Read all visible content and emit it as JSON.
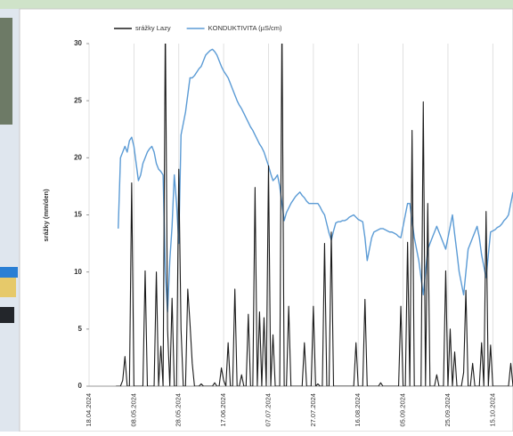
{
  "chart_data": {
    "type": "line",
    "x": [
      "18.04.2024",
      "19.04.2024",
      "20.04.2024",
      "21.04.2024",
      "22.04.2024",
      "23.04.2024",
      "24.04.2024",
      "25.04.2024",
      "26.04.2024",
      "27.04.2024",
      "28.04.2024",
      "29.04.2024",
      "30.04.2024",
      "01.05.2024",
      "02.05.2024",
      "03.05.2024",
      "04.05.2024",
      "05.05.2024",
      "06.05.2024",
      "07.05.2024",
      "08.05.2024",
      "09.05.2024",
      "10.05.2024",
      "11.05.2024",
      "12.05.2024",
      "13.05.2024",
      "14.05.2024",
      "15.05.2024",
      "16.05.2024",
      "17.05.2024",
      "18.05.2024",
      "19.05.2024",
      "20.05.2024",
      "21.05.2024",
      "22.05.2024",
      "23.05.2024",
      "24.05.2024",
      "25.05.2024",
      "26.05.2024",
      "27.05.2024",
      "28.05.2024",
      "29.05.2024",
      "30.05.2024",
      "31.05.2024",
      "01.06.2024",
      "02.06.2024",
      "03.06.2024",
      "04.06.2024",
      "05.06.2024",
      "06.06.2024",
      "07.06.2024",
      "08.06.2024",
      "09.06.2024",
      "10.06.2024",
      "11.06.2024",
      "12.06.2024",
      "13.06.2024",
      "14.06.2024",
      "15.06.2024",
      "16.06.2024",
      "17.06.2024",
      "18.06.2024",
      "19.06.2024",
      "20.06.2024",
      "21.06.2024",
      "22.06.2024",
      "23.06.2024",
      "24.06.2024",
      "25.06.2024",
      "26.06.2024",
      "27.06.2024",
      "28.06.2024",
      "29.06.2024",
      "30.06.2024",
      "01.07.2024",
      "02.07.2024",
      "03.07.2024",
      "04.07.2024",
      "05.07.2024",
      "06.07.2024",
      "07.07.2024",
      "08.07.2024",
      "09.07.2024",
      "10.07.2024",
      "11.07.2024",
      "12.07.2024",
      "13.07.2024",
      "14.07.2024",
      "15.07.2024",
      "16.07.2024",
      "17.07.2024",
      "18.07.2024",
      "19.07.2024",
      "20.07.2024",
      "21.07.2024",
      "22.07.2024",
      "23.07.2024",
      "24.07.2024",
      "25.07.2024",
      "26.07.2024",
      "27.07.2024",
      "28.07.2024",
      "29.07.2024",
      "30.07.2024",
      "31.07.2024",
      "01.08.2024",
      "02.08.2024",
      "03.08.2024",
      "04.08.2024",
      "05.08.2024",
      "06.08.2024",
      "07.08.2024",
      "08.08.2024",
      "09.08.2024",
      "10.08.2024",
      "11.08.2024",
      "12.08.2024",
      "13.08.2024",
      "14.08.2024",
      "15.08.2024",
      "16.08.2024",
      "17.08.2024",
      "18.08.2024",
      "19.08.2024",
      "20.08.2024",
      "21.08.2024",
      "22.08.2024",
      "23.08.2024",
      "24.08.2024",
      "25.08.2024",
      "26.08.2024",
      "27.08.2024",
      "28.08.2024",
      "29.08.2024",
      "30.08.2024",
      "31.08.2024",
      "01.09.2024",
      "02.09.2024",
      "03.09.2024",
      "04.09.2024",
      "05.09.2024",
      "06.09.2024",
      "07.09.2024",
      "08.09.2024",
      "09.09.2024",
      "10.09.2024",
      "11.09.2024",
      "12.09.2024",
      "13.09.2024",
      "14.09.2024",
      "15.09.2024",
      "16.09.2024",
      "17.09.2024",
      "18.09.2024",
      "19.09.2024",
      "20.09.2024",
      "21.09.2024",
      "22.09.2024",
      "23.09.2024",
      "24.09.2024",
      "25.09.2024",
      "26.09.2024",
      "27.09.2024",
      "28.09.2024",
      "29.09.2024",
      "30.09.2024",
      "01.10.2024",
      "02.10.2024",
      "03.10.2024",
      "04.10.2024",
      "05.10.2024",
      "06.10.2024",
      "07.10.2024",
      "08.10.2024",
      "09.10.2024",
      "10.10.2024",
      "11.10.2024",
      "12.10.2024",
      "13.10.2024",
      "14.10.2024",
      "15.10.2024",
      "16.10.2024",
      "17.10.2024",
      "18.10.2024",
      "19.10.2024",
      "20.10.2024",
      "21.10.2024",
      "22.10.2024",
      "23.10.2024",
      "24.10.2024"
    ],
    "series": [
      {
        "name": "srážky Lazy",
        "color": "#1a1a1a",
        "values": [
          null,
          null,
          null,
          null,
          null,
          null,
          null,
          null,
          null,
          null,
          null,
          null,
          0,
          0,
          0,
          0.5,
          2.6,
          0,
          0,
          17.8,
          0,
          0,
          0,
          0,
          0,
          10.1,
          0,
          0,
          0,
          0,
          10,
          0,
          3.5,
          0,
          32,
          5,
          0,
          7.7,
          0,
          0,
          19,
          5,
          0,
          0,
          8.5,
          5.5,
          2,
          0,
          0,
          0,
          0.2,
          0,
          0,
          0,
          0,
          0,
          0.3,
          0,
          0,
          1.6,
          0.5,
          0,
          3.8,
          0,
          0,
          8.5,
          0,
          0,
          1,
          0,
          0,
          6.3,
          0,
          0,
          17.4,
          0,
          6.5,
          0,
          6,
          0,
          19.3,
          0,
          4.5,
          0,
          0,
          0,
          32,
          0,
          0,
          7,
          0,
          0,
          0,
          0,
          0,
          0,
          3.8,
          0,
          0,
          0,
          7,
          0,
          0.2,
          0,
          0,
          12.5,
          0,
          0,
          13.5,
          0,
          0,
          0,
          0,
          0,
          0,
          0,
          0,
          0,
          0,
          3.8,
          0,
          0,
          0,
          7.6,
          0,
          0,
          0,
          0,
          0,
          0,
          0.3,
          0,
          0,
          0,
          0,
          0,
          0,
          0,
          0,
          7,
          0,
          0,
          12.6,
          0,
          22.4,
          0,
          0,
          0,
          0,
          24.9,
          0,
          16,
          0,
          0,
          0,
          1,
          0,
          0,
          0,
          10.1,
          0,
          5,
          0,
          3,
          0,
          0,
          0,
          1.2,
          8.4,
          0,
          0,
          2,
          0,
          0,
          0,
          3.8,
          0,
          15.3,
          0,
          3.6,
          0,
          0,
          0,
          0,
          0,
          0,
          0,
          0,
          2,
          0
        ]
      },
      {
        "name": "KONDUKTIVITA (µS/cm)",
        "color": "#5b9bd5",
        "values": [
          null,
          null,
          null,
          null,
          null,
          null,
          null,
          null,
          null,
          null,
          null,
          null,
          null,
          13.8,
          20,
          20.5,
          21,
          20.5,
          21.5,
          21.8,
          21,
          19.5,
          18,
          18.5,
          19.5,
          20,
          20.5,
          20.8,
          21,
          20.5,
          19.5,
          19,
          18.8,
          18.5,
          10,
          6.5,
          11,
          14,
          18.5,
          16,
          12.5,
          22,
          23,
          24,
          25.5,
          27,
          27,
          27.2,
          27.5,
          27.8,
          28,
          28.5,
          29,
          29.2,
          29.4,
          29.5,
          29.3,
          29,
          28.5,
          28,
          27.6,
          27.3,
          27,
          26.5,
          26,
          25.5,
          25,
          24.6,
          24.3,
          23.9,
          23.5,
          23.1,
          22.7,
          22.4,
          22,
          21.6,
          21.2,
          20.9,
          20.5,
          19.9,
          19.3,
          18.6,
          18,
          18.2,
          18.5,
          17.5,
          16,
          14.5,
          15.2,
          15.6,
          16,
          16.3,
          16.6,
          16.8,
          17,
          16.7,
          16.5,
          16.2,
          16,
          16,
          16,
          16,
          16,
          15.7,
          15.3,
          15,
          14.2,
          13.4,
          12.8,
          13.6,
          14.3,
          14.4,
          14.4,
          14.5,
          14.5,
          14.6,
          14.8,
          14.9,
          15,
          14.8,
          14.6,
          14.5,
          14.4,
          13,
          11,
          12,
          13,
          13.5,
          13.6,
          13.7,
          13.8,
          13.8,
          13.7,
          13.6,
          13.5,
          13.5,
          13.4,
          13.3,
          13.1,
          13,
          14,
          15,
          16,
          16,
          14.5,
          13,
          12,
          11,
          9.5,
          8,
          10,
          12,
          12.5,
          13,
          13.5,
          14,
          13.5,
          13,
          12.5,
          12,
          13,
          14,
          15,
          13.3,
          11.7,
          10,
          9,
          8,
          10,
          12,
          12.5,
          13,
          13.5,
          14,
          13,
          11.5,
          10.5,
          9.5,
          11.5,
          13.5,
          13.6,
          13.7,
          13.9,
          14,
          14.2,
          14.5,
          14.7,
          15,
          16,
          17
        ]
      }
    ],
    "y_label": "srážky (mm/den)",
    "xlim": [
      "18.04.2024",
      "24.10.2024"
    ],
    "xticks": [
      "18.04.2024",
      "08.05.2024",
      "28.05.2024",
      "17.06.2024",
      "07.07.2024",
      "27.07.2024",
      "16.08.2024",
      "05.09.2024",
      "25.09.2024",
      "15.10.2024"
    ],
    "ylim": [
      0,
      30
    ],
    "yticks": [
      0,
      5,
      10,
      15,
      20,
      25,
      30
    ],
    "grid": "x",
    "legend": "top"
  }
}
